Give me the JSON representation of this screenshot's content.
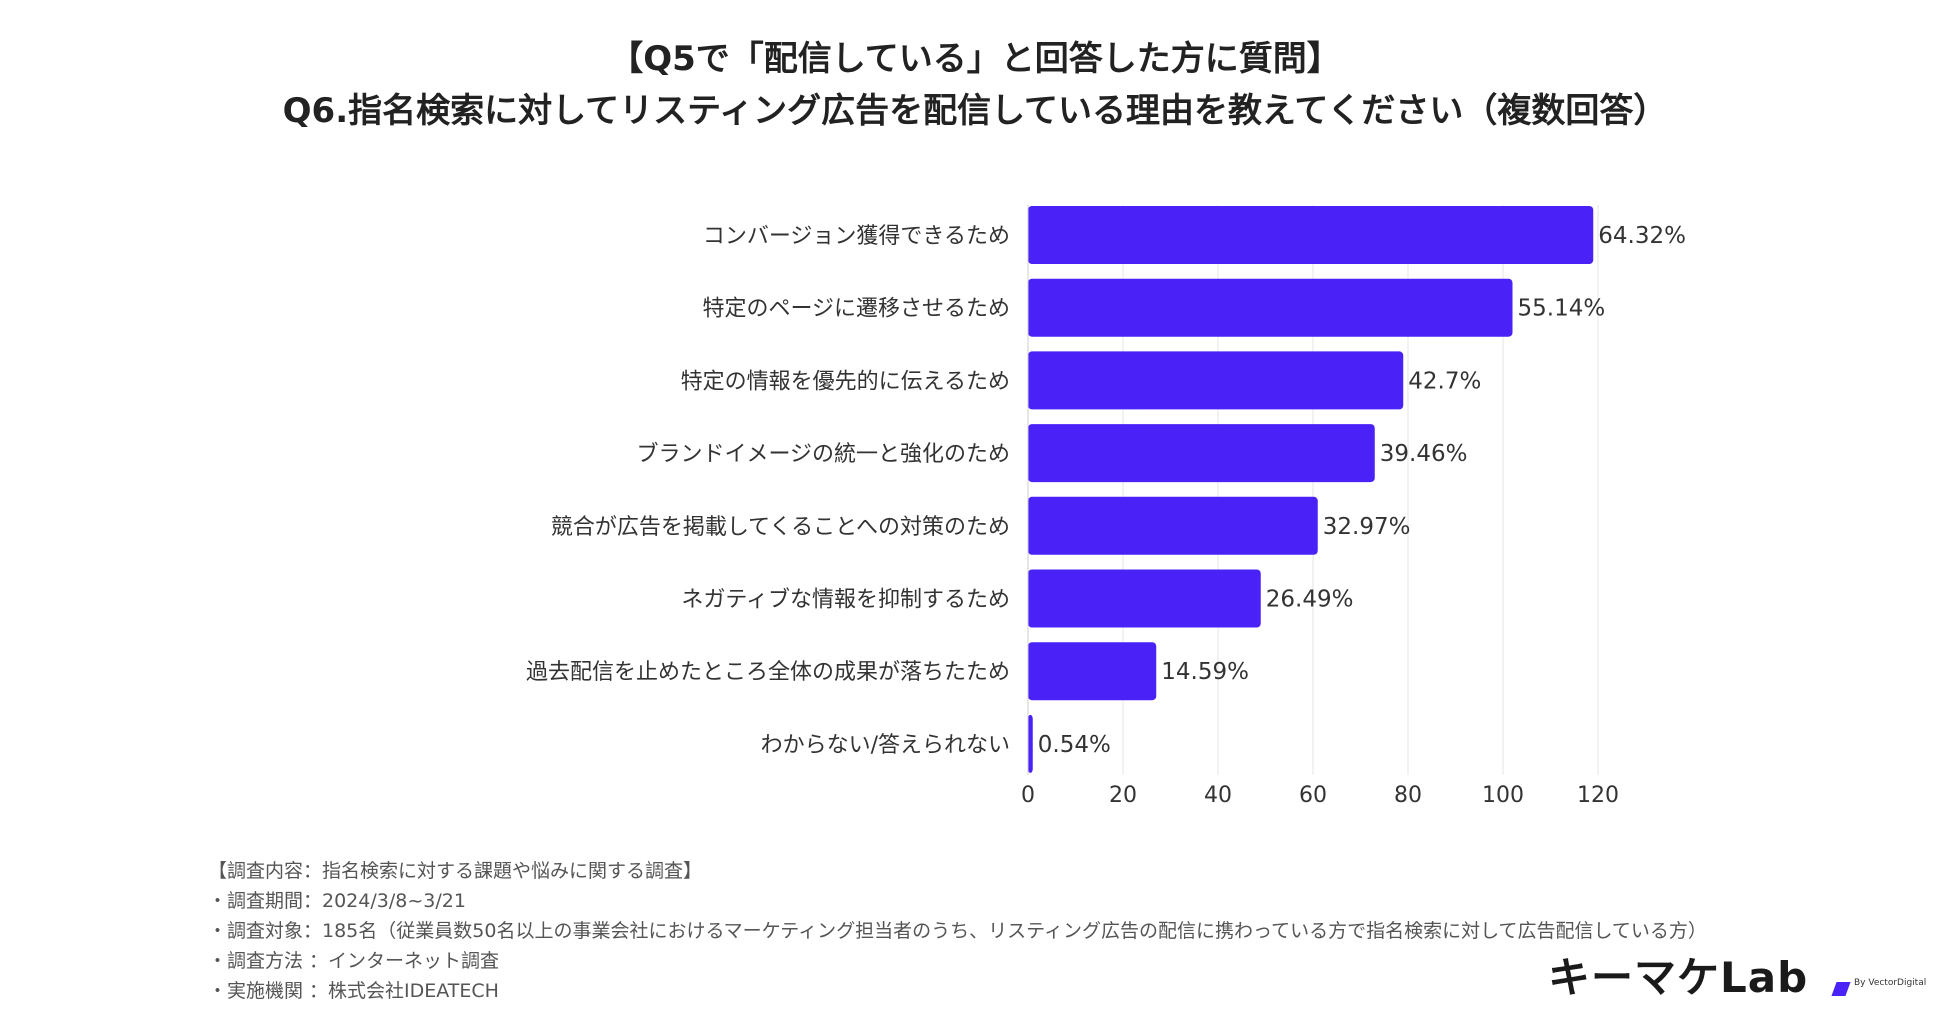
{
  "title_line1": "【Q5で「配信している」と回答した方に質問】",
  "title_line2": "Q6.指名検索に対してリスティング広告を配信している理由を教えてください（複数回答）",
  "chart_data": {
    "type": "bar",
    "orientation": "horizontal",
    "categories": [
      "コンバージョン獲得できるため",
      "特定のページに遷移させるため",
      "特定の情報を優先的に伝えるため",
      "ブランドイメージの統一と強化のため",
      "競合が広告を掲載してくることへの対策のため",
      "ネガティブな情報を抑制するため",
      "過去配信を止めたところ全体の成果が落ちたため",
      "わからない/答えられない"
    ],
    "values": [
      119,
      102,
      79,
      73,
      61,
      49,
      27,
      1
    ],
    "data_labels": [
      "64.32%",
      "55.14%",
      "42.7%",
      "39.46%",
      "32.97%",
      "26.49%",
      "14.59%",
      "0.54%"
    ],
    "xlim": [
      0,
      120
    ],
    "xticks": [
      0,
      20,
      40,
      60,
      80,
      100,
      120
    ],
    "grid": true,
    "bar_color": "#4a22f7"
  },
  "notes": [
    "【調査内容：指名検索に対する課題や悩みに関する調査】",
    "・調査期間：2024/3/8~3/21",
    "・調査対象：185名（従業員数50名以上の事業会社におけるマーケティング担当者のうち、リスティング広告の配信に携わっている方で指名検索に対して広告配信している方）",
    "・調査方法 ：インターネット調査",
    "・実施機関 ：株式会社IDEATECH"
  ],
  "logo": {
    "text": "キーマケLab",
    "sub": "By VectorDigital",
    "accent_color": "#4a22f7"
  }
}
